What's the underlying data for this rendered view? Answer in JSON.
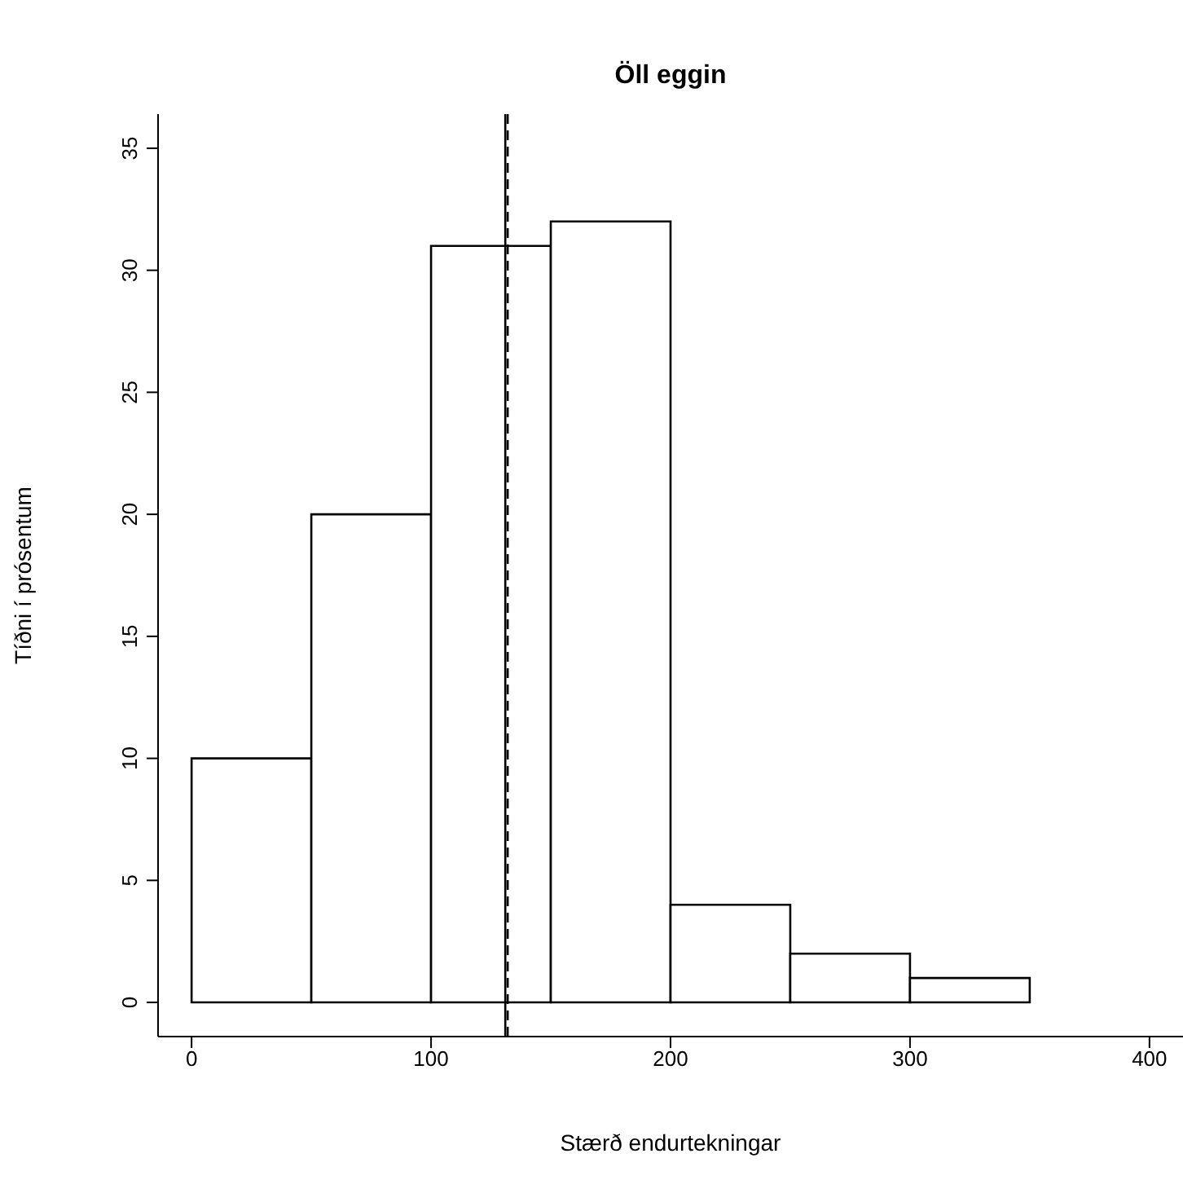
{
  "chart_data": {
    "type": "histogram",
    "title": "Öll eggin",
    "xlabel": "Stærð endurtekningar",
    "ylabel": "Tíðni í prósentum",
    "bins": [
      0,
      50,
      100,
      150,
      200,
      250,
      300,
      350
    ],
    "values": [
      10,
      20,
      31,
      32,
      4,
      2,
      1
    ],
    "color": "#ffffff",
    "xlim": [
      -14,
      414
    ],
    "xticks": [
      0,
      100,
      200,
      300,
      400
    ],
    "ylim": [
      -1.4,
      36.4
    ],
    "yticks": [
      0,
      5,
      10,
      15,
      20,
      25,
      30,
      35
    ],
    "ref_lines": [
      {
        "axis": "x",
        "value": 131,
        "line_style": "solid",
        "color": "#000000"
      },
      {
        "axis": "x",
        "value": 132,
        "line_style": "dashed",
        "color": "#000000"
      }
    ]
  }
}
